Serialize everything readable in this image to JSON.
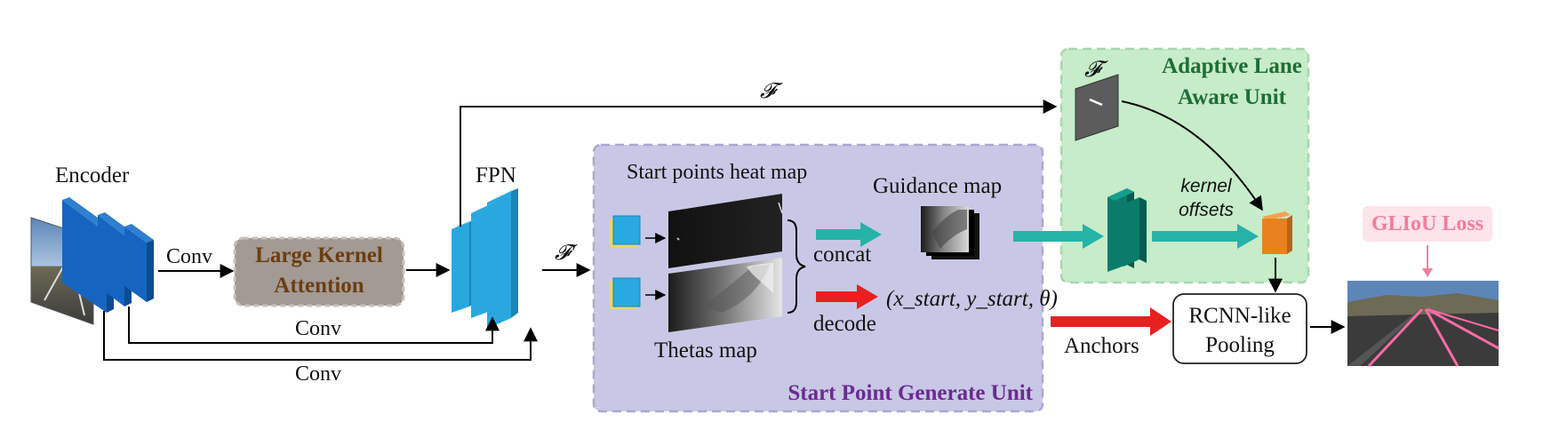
{
  "labels": {
    "encoder": "Encoder",
    "fpn": "FPN",
    "conv_top": "Conv",
    "conv_skip1": "Conv",
    "conv_skip2": "Conv",
    "lka_line1": "Large Kernel",
    "lka_line2": "Attention",
    "feat_f": "𝓕",
    "feat_f_prime": "𝓕′",
    "start_heat": "Start points heat map",
    "thetas": "Thetas map",
    "guidance": "Guidance map",
    "concat": "concat",
    "decode": "decode",
    "decode_output": "(x_start, y_start, θ)",
    "spgu_title": "Start Point Generate Unit",
    "alau_title_line1": "Adaptive Lane",
    "alau_title_line2": "Aware Unit",
    "alau_f": "𝓕",
    "kernel_line1": "kernel",
    "kernel_line2": "offsets",
    "anchors": "Anchors",
    "rcnn_line1": "RCNN-like",
    "rcnn_line2": "Pooling",
    "gliou": "GLIoU Loss"
  },
  "colors": {
    "encoder_blue": "#1565c0",
    "fpn_blue": "#29a8e0",
    "lka_fill": "#a39a94",
    "lka_text": "#6b3e12",
    "spgu_fill": "#c8c8e6",
    "spgu_text": "#6a2c91",
    "alau_fill": "#c6ecc9",
    "alau_text": "#1e6e34",
    "teal": "#26b3a7",
    "red": "#e82020",
    "orange": "#e9821e",
    "dark_teal": "#0b7b6b",
    "gliou_fill": "#fde3ea",
    "gliou_text": "#f07e9a"
  }
}
